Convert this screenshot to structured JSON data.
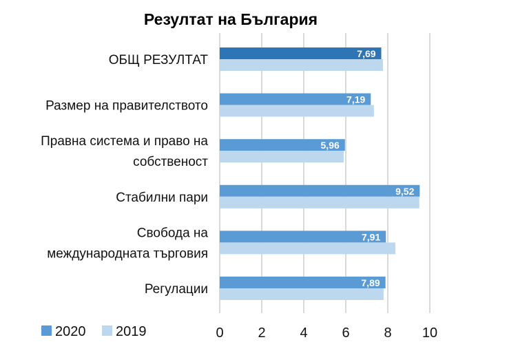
{
  "chart_data": {
    "type": "bar",
    "orientation": "horizontal",
    "title": "Резултат на България",
    "categories": [
      [
        "ОБЩ РЕЗУЛТАТ"
      ],
      [
        "Размер на правителството"
      ],
      [
        "Правна система и право на",
        "собственост"
      ],
      [
        "Стабилни пари"
      ],
      [
        "Свобода на",
        "международната търговия"
      ],
      [
        "Регулации"
      ]
    ],
    "series": [
      {
        "name": "2020",
        "color": "#5b9bd5",
        "highlight_color": "#2e75b6",
        "values": [
          7.69,
          7.19,
          5.96,
          9.52,
          7.91,
          7.89
        ],
        "labels": [
          "7,69",
          "7,19",
          "5,96",
          "9,52",
          "7,91",
          "7,89"
        ]
      },
      {
        "name": "2019",
        "color": "#bdd7ee",
        "values": [
          7.77,
          7.34,
          5.9,
          9.5,
          8.36,
          7.8
        ]
      }
    ],
    "xlim": [
      0,
      10
    ],
    "xticks": [
      "0",
      "2",
      "4",
      "6",
      "8",
      "10"
    ],
    "xtick_values": [
      0,
      2,
      4,
      6,
      8,
      10
    ],
    "grid": true,
    "legend_position": "bottom-left"
  }
}
